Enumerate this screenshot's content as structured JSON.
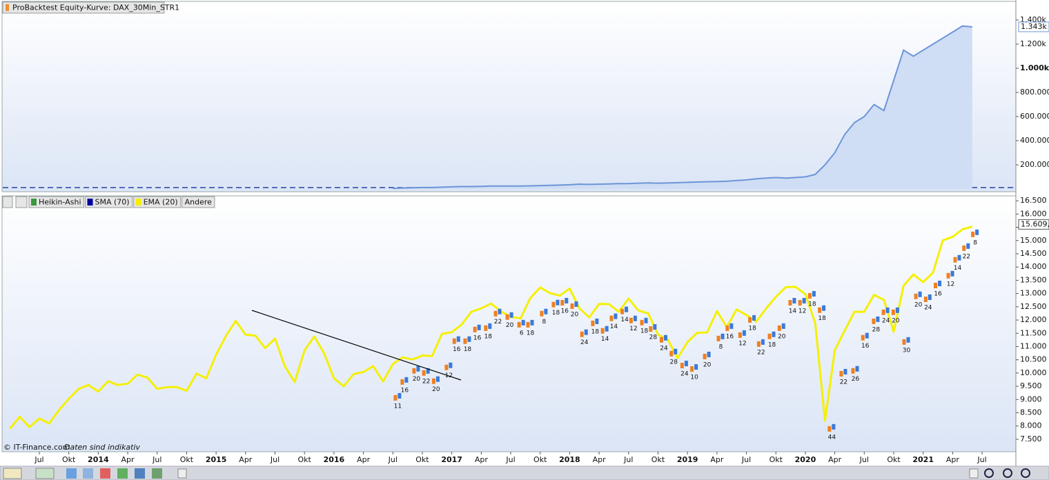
{
  "header": {
    "equity_title": "ProBacktest Equity-Kurve: DAX_30Min_STR1",
    "legend": [
      "Heikin-Ashi",
      "SMA (70)",
      "EMA (20)",
      "Andere"
    ],
    "legend_colors": [
      "#3a9a3a",
      "#0000a0",
      "#f5f000",
      null
    ],
    "copyright": "© IT-Finance.com",
    "note": "Daten sind indikativ"
  },
  "chart_data": [
    {
      "type": "area",
      "name": "equity",
      "color": "#6b95d8",
      "fill": "#cfddf5",
      "ylim": [
        -34000,
        1537000
      ],
      "yticks": [
        {
          "value": 200000,
          "label": "200.000"
        },
        {
          "value": 400000,
          "label": "400.000"
        },
        {
          "value": 600000,
          "label": "600.000"
        },
        {
          "value": 800000,
          "label": "800.000"
        },
        {
          "value": 1000000,
          "label": "1.000k"
        },
        {
          "value": 1200000,
          "label": "1.200k"
        },
        {
          "value": 1400000,
          "label": "1.400k"
        }
      ],
      "last_label": {
        "value": 1343000,
        "label": "1.343k"
      },
      "values": [
        null,
        null,
        null,
        null,
        null,
        null,
        null,
        null,
        null,
        null,
        null,
        null,
        null,
        null,
        null,
        null,
        null,
        null,
        null,
        null,
        null,
        null,
        null,
        null,
        null,
        null,
        null,
        null,
        null,
        null,
        null,
        null,
        null,
        null,
        null,
        null,
        null,
        null,
        null,
        5000,
        8000,
        10000,
        12000,
        12000,
        15000,
        18000,
        20000,
        20000,
        22000,
        25000,
        25000,
        25000,
        24000,
        26000,
        28000,
        30000,
        32000,
        35000,
        40000,
        38000,
        40000,
        42000,
        45000,
        45000,
        48000,
        50000,
        48000,
        50000,
        52000,
        55000,
        58000,
        60000,
        62000,
        65000,
        70000,
        75000,
        85000,
        90000,
        95000,
        90000,
        95000,
        100000,
        120000,
        200000,
        300000,
        450000,
        550000,
        600000,
        700000,
        650000,
        900000,
        1150000,
        1100000,
        1150000,
        1200000,
        1250000,
        1300000,
        1350000,
        1343000,
        null
      ]
    },
    {
      "type": "line",
      "name": "price",
      "color": "#f5f000",
      "ylim": [
        7030,
        16660
      ],
      "yticks": [
        {
          "value": 7500,
          "label": "7.500"
        },
        {
          "value": 8000,
          "label": "8.000"
        },
        {
          "value": 8500,
          "label": "8.500"
        },
        {
          "value": 9000,
          "label": "9.000"
        },
        {
          "value": 9500,
          "label": "9.500"
        },
        {
          "value": 10000,
          "label": "10.000"
        },
        {
          "value": 10500,
          "label": "10.500"
        },
        {
          "value": 11000,
          "label": "11.000"
        },
        {
          "value": 11500,
          "label": "11.500"
        },
        {
          "value": 12000,
          "label": "12.000"
        },
        {
          "value": 12500,
          "label": "12.500"
        },
        {
          "value": 13000,
          "label": "13.000"
        },
        {
          "value": 13500,
          "label": "13.500"
        },
        {
          "value": 14000,
          "label": "14.000"
        },
        {
          "value": 14500,
          "label": "14.500"
        },
        {
          "value": 15000,
          "label": "15.000"
        },
        {
          "value": 15500,
          "label": "15.500"
        },
        {
          "value": 16000,
          "label": "16.000"
        },
        {
          "value": 16500,
          "label": "16.500"
        }
      ],
      "last_label": {
        "value": 15609.1,
        "label": "15.609,1"
      },
      "categories": [
        null,
        null,
        null,
        "Jul",
        null,
        null,
        "Okt",
        null,
        null,
        "2014",
        null,
        null,
        "Apr",
        null,
        null,
        "Jul",
        null,
        null,
        "Okt",
        null,
        null,
        "2015",
        null,
        null,
        "Apr",
        null,
        null,
        "Jul",
        null,
        null,
        "Okt",
        null,
        null,
        "2016",
        null,
        null,
        "Apr",
        null,
        null,
        "Jul",
        null,
        null,
        "Okt",
        null,
        null,
        "2017",
        null,
        null,
        "Apr",
        null,
        null,
        "Jul",
        null,
        null,
        "Okt",
        null,
        null,
        "2018",
        null,
        null,
        "Apr",
        null,
        null,
        "Jul",
        null,
        null,
        "Okt",
        null,
        null,
        "2019",
        null,
        null,
        "Apr",
        null,
        null,
        "Jul",
        null,
        null,
        "Okt",
        null,
        null,
        "2020",
        null,
        null,
        "Apr",
        null,
        null,
        "Jul",
        null,
        null,
        "Okt",
        null,
        null,
        "2021",
        null,
        null,
        "Apr",
        null,
        null,
        "Jul"
      ],
      "values": [
        7900,
        8350,
        7960,
        8280,
        8100,
        8600,
        9030,
        9400,
        9550,
        9300,
        9690,
        9550,
        9600,
        9940,
        9830,
        9400,
        9470,
        9470,
        9330,
        9980,
        9800,
        10690,
        11400,
        11970,
        11450,
        11410,
        10940,
        11300,
        10260,
        9660,
        10850,
        11380,
        10740,
        9800,
        9500,
        9960,
        10040,
        10260,
        9680,
        10340,
        10590,
        10510,
        10660,
        10640,
        11480,
        11540,
        11830,
        12310,
        12440,
        12620,
        12330,
        12120,
        12060,
        12830,
        13230,
        13020,
        12920,
        13190,
        12440,
        12100,
        12610,
        12600,
        12310,
        12810,
        12360,
        12250,
        11450,
        11260,
        10560,
        11170,
        11520,
        11530,
        12340,
        11730,
        12400,
        12190,
        11940,
        12430,
        12870,
        13240,
        13250,
        12980,
        11890,
        8200,
        10860,
        11590,
        12310,
        12310,
        12950,
        12760,
        11560,
        13290,
        13720,
        13430,
        13790,
        15010,
        15140,
        15420,
        15530,
        null
      ],
      "annotations": [
        {
          "text": "11",
          "x": 39.5,
          "y": 8750
        },
        {
          "text": "16",
          "x": 40.2,
          "y": 9350
        },
        {
          "text": "20",
          "x": 41.4,
          "y": 9770
        },
        {
          "text": "22",
          "x": 42.4,
          "y": 9690
        },
        {
          "text": "20",
          "x": 43.4,
          "y": 9380
        },
        {
          "text": "12",
          "x": 44.7,
          "y": 9900
        },
        {
          "text": "16",
          "x": 45.5,
          "y": 10890
        },
        {
          "text": "18",
          "x": 46.6,
          "y": 10890
        },
        {
          "text": "16",
          "x": 47.6,
          "y": 11330
        },
        {
          "text": "18",
          "x": 48.7,
          "y": 11380
        },
        {
          "text": "22",
          "x": 49.7,
          "y": 11930
        },
        {
          "text": "20",
          "x": 50.9,
          "y": 11800
        },
        {
          "text": "6",
          "x": 52.1,
          "y": 11510
        },
        {
          "text": "18",
          "x": 53.0,
          "y": 11510
        },
        {
          "text": "8",
          "x": 54.4,
          "y": 11930
        },
        {
          "text": "18",
          "x": 55.6,
          "y": 12270
        },
        {
          "text": "16",
          "x": 56.5,
          "y": 12340
        },
        {
          "text": "20",
          "x": 57.5,
          "y": 12210
        },
        {
          "text": "24",
          "x": 58.5,
          "y": 11150
        },
        {
          "text": "18",
          "x": 59.6,
          "y": 11560
        },
        {
          "text": "14",
          "x": 60.6,
          "y": 11280
        },
        {
          "text": "14",
          "x": 61.5,
          "y": 11750
        },
        {
          "text": "14",
          "x": 62.6,
          "y": 12010
        },
        {
          "text": "12",
          "x": 63.5,
          "y": 11670
        },
        {
          "text": "18",
          "x": 64.6,
          "y": 11590
        },
        {
          "text": "28",
          "x": 65.5,
          "y": 11350
        },
        {
          "text": "24",
          "x": 66.6,
          "y": 10940
        },
        {
          "text": "28",
          "x": 67.6,
          "y": 10420
        },
        {
          "text": "24",
          "x": 68.7,
          "y": 9970
        },
        {
          "text": "10",
          "x": 69.7,
          "y": 9840
        },
        {
          "text": "20",
          "x": 71.0,
          "y": 10310
        },
        {
          "text": "8",
          "x": 72.4,
          "y": 10990
        },
        {
          "text": "16",
          "x": 73.3,
          "y": 11380
        },
        {
          "text": "12",
          "x": 74.6,
          "y": 11120
        },
        {
          "text": "18",
          "x": 75.6,
          "y": 11690
        },
        {
          "text": "22",
          "x": 76.5,
          "y": 10780
        },
        {
          "text": "18",
          "x": 77.6,
          "y": 11070
        },
        {
          "text": "20",
          "x": 78.6,
          "y": 11380
        },
        {
          "text": "14",
          "x": 79.7,
          "y": 12340
        },
        {
          "text": "12",
          "x": 80.7,
          "y": 12340
        },
        {
          "text": "18",
          "x": 81.7,
          "y": 12600
        },
        {
          "text": "18",
          "x": 82.7,
          "y": 12060
        },
        {
          "text": "44",
          "x": 83.7,
          "y": 7580
        },
        {
          "text": "22",
          "x": 84.9,
          "y": 9660
        },
        {
          "text": "26",
          "x": 86.1,
          "y": 9770
        },
        {
          "text": "16",
          "x": 87.1,
          "y": 11020
        },
        {
          "text": "28",
          "x": 88.2,
          "y": 11640
        },
        {
          "text": "24",
          "x": 89.2,
          "y": 11980
        },
        {
          "text": "20",
          "x": 90.2,
          "y": 11980
        },
        {
          "text": "30",
          "x": 91.3,
          "y": 10860
        },
        {
          "text": "20",
          "x": 92.5,
          "y": 12580
        },
        {
          "text": "24",
          "x": 93.5,
          "y": 12470
        },
        {
          "text": "16",
          "x": 94.5,
          "y": 12990
        },
        {
          "text": "12",
          "x": 95.8,
          "y": 13360
        },
        {
          "text": "14",
          "x": 96.5,
          "y": 13960
        },
        {
          "text": "22",
          "x": 97.4,
          "y": 14400
        },
        {
          "text": "8",
          "x": 98.3,
          "y": 14920
        }
      ]
    }
  ]
}
